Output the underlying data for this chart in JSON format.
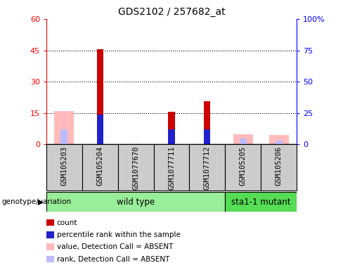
{
  "title": "GDS2102 / 257682_at",
  "samples": [
    "GSM105203",
    "GSM105204",
    "GSM1077670",
    "GSM1077711",
    "GSM1077712",
    "GSM105205",
    "GSM105206"
  ],
  "count_values": [
    0,
    45.5,
    0,
    15.5,
    20.5,
    0,
    0
  ],
  "rank_values_pct": [
    0,
    24,
    0,
    12,
    12,
    0,
    0
  ],
  "absent_value_values": [
    16,
    0,
    0,
    0,
    0,
    5,
    4.5
  ],
  "absent_rank_values_pct": [
    12,
    0,
    1,
    0,
    0,
    5,
    3
  ],
  "ylim_left": [
    0,
    60
  ],
  "ylim_right": [
    0,
    100
  ],
  "yticks_left": [
    0,
    15,
    30,
    45,
    60
  ],
  "yticks_right": [
    0,
    25,
    50,
    75,
    100
  ],
  "yticks_right_labels": [
    "0",
    "25",
    "50",
    "75",
    "100%"
  ],
  "count_color": "#cc0000",
  "rank_color": "#2222cc",
  "absent_value_color": "#ffbbbb",
  "absent_rank_color": "#bbbbff",
  "bg_color": "#cccccc",
  "wt_bg_color": "#99ee99",
  "mut_bg_color": "#55dd55",
  "plot_bg": "#ffffff",
  "wild_type_count": 5,
  "mutant_count": 2,
  "genotype_label": "genotype/variation",
  "wild_type_label": "wild type",
  "mutant_label": "sta1-1 mutant"
}
